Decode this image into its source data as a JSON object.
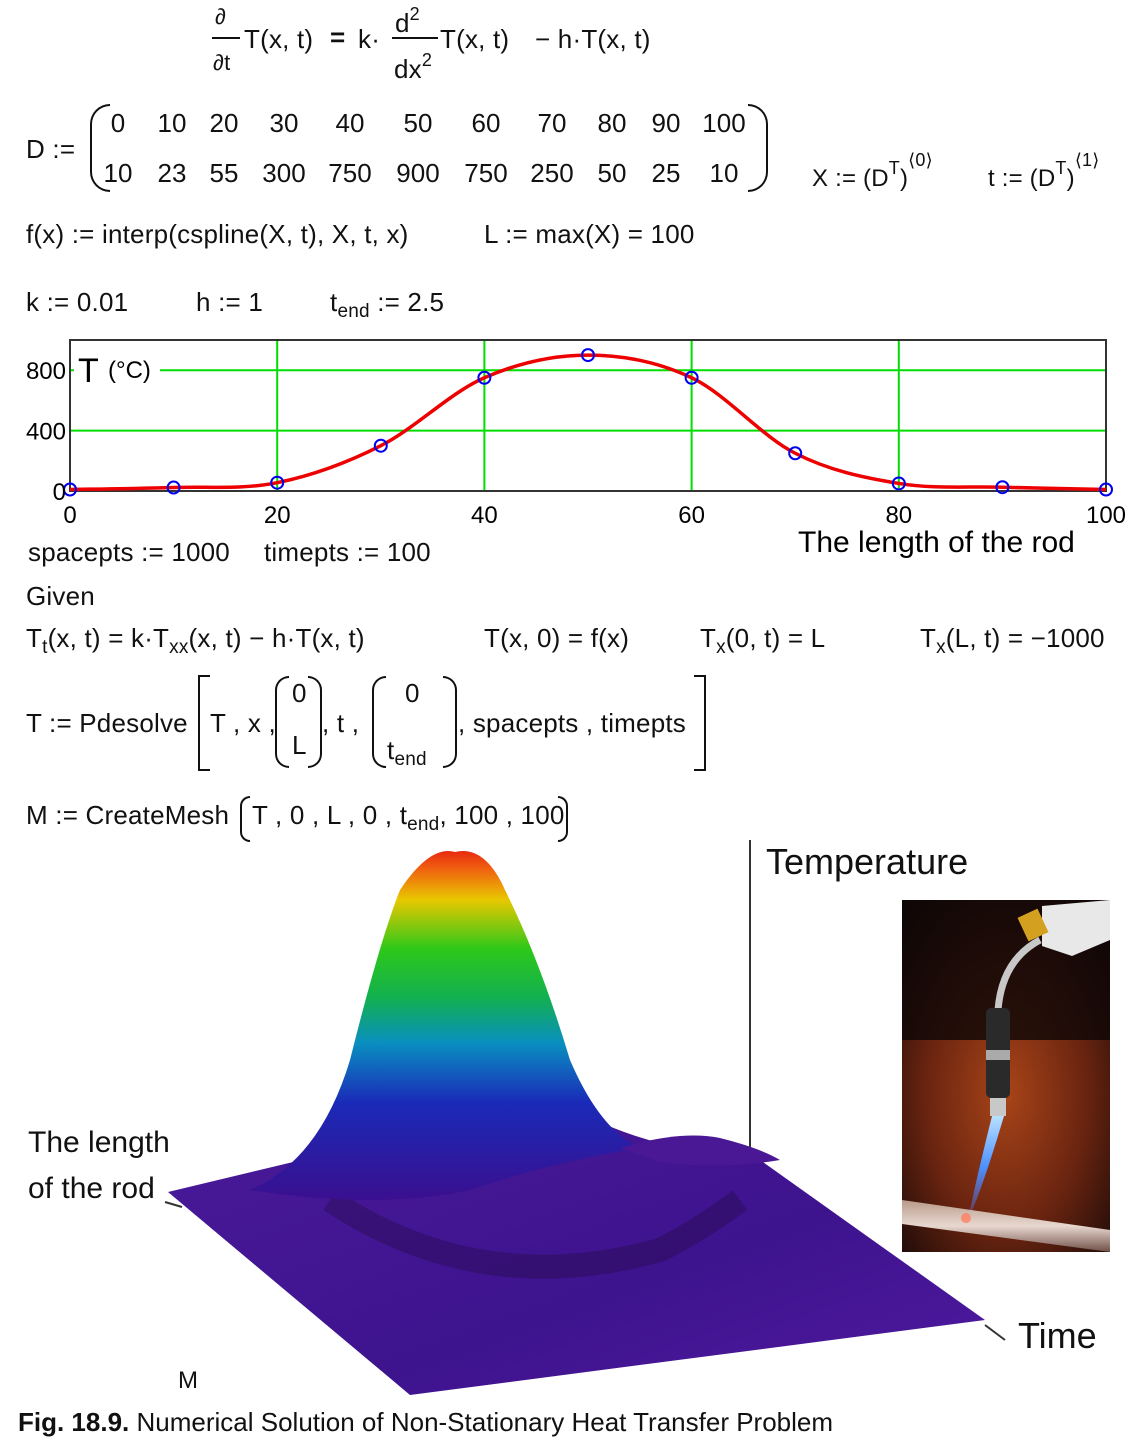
{
  "pde": {
    "partial": "∂",
    "dt": "∂t",
    "lhs": "T(x, t)",
    "eq": "=",
    "k": "k·",
    "d2": "d",
    "two": "2",
    "dx2": "dx",
    "rhs1": "T(x, t)",
    "rhs2": "− h·T(x, t)"
  },
  "matrix": {
    "name": "D :=",
    "row1": [
      "0",
      "10",
      "20",
      "30",
      "40",
      "50",
      "60",
      "70",
      "80",
      "90",
      "100"
    ],
    "row2": [
      "10",
      "23",
      "55",
      "300",
      "750",
      "900",
      "750",
      "250",
      "50",
      "25",
      "10"
    ],
    "X_def": "X := (D",
    "t_def": "t := (D",
    "T": "T",
    "col0": "⟨0⟩",
    "col1": "⟨1⟩"
  },
  "defs": {
    "f_line": "f(x) := interp(cspline(X, t), X, t, x)",
    "L_line": "L := max(X) = 100",
    "k_line": "k := 0.01",
    "h_line": "h := 1",
    "tend_t": "t",
    "tend_sub": "end",
    "tend_val": ":= 2.5"
  },
  "chart_data": {
    "type": "line",
    "ylabel": "T",
    "ylabel_unit": "(°C)",
    "xlabel": "The length of the rod",
    "xlim": [
      0,
      100
    ],
    "ylim": [
      0,
      1000
    ],
    "xticks": [
      "0",
      "20",
      "40",
      "60",
      "80",
      "100"
    ],
    "yticks": [
      "0",
      "400",
      "800"
    ],
    "grid": true,
    "points_x": [
      0,
      10,
      20,
      30,
      40,
      50,
      60,
      70,
      80,
      90,
      100
    ],
    "points_y": [
      10,
      23,
      55,
      300,
      750,
      900,
      750,
      250,
      50,
      25,
      10
    ],
    "line_color": "#ee0000",
    "point_color": "#0000ee",
    "grid_color": "#00dd00"
  },
  "solver": {
    "spacepts": "spacepts := 1000",
    "timepts": "timepts := 100",
    "given": "Given",
    "eq1_T": "T",
    "eq1_tsub": "t",
    "eq1_mid": "(x, t) = k·T",
    "eq1_xxsub": "xx",
    "eq1_end": "(x, t) − h·T(x, t)",
    "eq2": "T(x, 0) = f(x)",
    "eq3_T": "T",
    "eq3_sub": "x",
    "eq3_rest": "(0, t) = L",
    "eq4_T": "T",
    "eq4_sub": "x",
    "eq4_rest": "(L, t) = −1000",
    "pdesolve_pre": "T := Pdesolve",
    "pd_T": "T , x ,",
    "pd_0": "0",
    "pd_L": "L",
    "pd_t": ", t ,",
    "pd_zero": "0",
    "pd_tend_t": "t",
    "pd_tend_sub": "end",
    "pd_rest": ", spacepts , timepts",
    "mesh_pre": "M := CreateMesh",
    "mesh_args1": "T , 0 , L , 0 , t",
    "mesh_sub": "end",
    "mesh_args2": ", 100 , 100"
  },
  "surface": {
    "axis_temp": "Temperature",
    "axis_len_1": "The length",
    "axis_len_2": "of the rod",
    "axis_time": "Time",
    "mesh_label": "M"
  },
  "caption": {
    "bold": "Fig. 18.9.",
    "text": " Numerical Solution of Non-Stationary Heat Transfer Problem"
  }
}
